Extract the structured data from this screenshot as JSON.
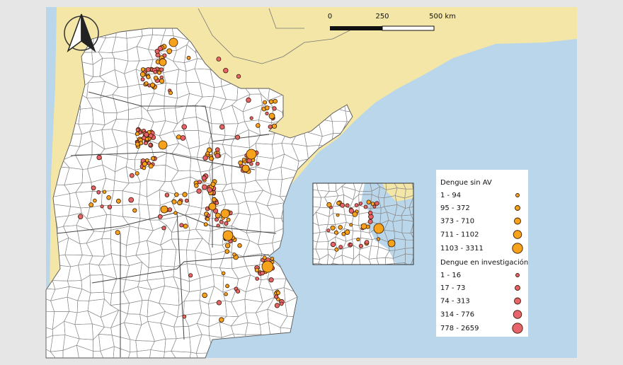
{
  "scale_bar": {
    "labels": [
      "0",
      "250",
      "500 km"
    ]
  },
  "legend": {
    "groups": [
      {
        "title": "Dengue sin AV",
        "items": [
          "1 - 94",
          "95 - 372",
          "373 - 710",
          "711 - 1102",
          "1103 - 3311"
        ]
      },
      {
        "title": "Dengue en investigación",
        "items": [
          "1 - 16",
          "17 - 73",
          "74 - 313",
          "314 - 776",
          "778 - 2659"
        ]
      }
    ]
  }
}
